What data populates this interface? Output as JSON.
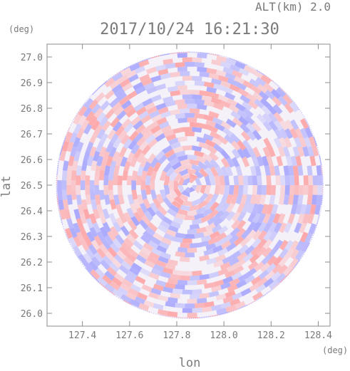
{
  "header": {
    "altitude_label": "ALT(km) 2.0",
    "timestamp": "2017/10/24 16:21:30"
  },
  "colors": {
    "positive": "#ff9696",
    "negative": "#9696ff",
    "axis": "#8c8c8c",
    "text": "#7a7a7a",
    "background": "#ffffff"
  },
  "chart_data": {
    "type": "heatmap",
    "title": "2017/10/24 16:21:30",
    "subtitle": "ALT(km) 2.0",
    "xlabel": "lon",
    "ylabel": "lat",
    "x_unit": "(deg)",
    "y_unit": "(deg)",
    "xlim": [
      127.25,
      128.45
    ],
    "ylim": [
      25.95,
      27.05
    ],
    "x_ticks": [
      127.4,
      127.6,
      127.8,
      128.0,
      128.2,
      128.4
    ],
    "x_tick_labels": [
      "127.4",
      "127.6",
      "127.8",
      "128.0",
      "128.2",
      "128.4"
    ],
    "y_ticks": [
      26.0,
      26.1,
      26.2,
      26.3,
      26.4,
      26.5,
      26.6,
      26.7,
      26.8,
      26.9,
      27.0
    ],
    "y_tick_labels": [
      "26.0",
      "26.1",
      "26.2",
      "26.3",
      "26.4",
      "26.5",
      "26.6",
      "26.7",
      "26.8",
      "26.9",
      "27.0"
    ],
    "grid": false,
    "radar": {
      "center_lon": 127.855,
      "center_lat": 26.5,
      "radius_lat_deg": 0.52
    }
  }
}
